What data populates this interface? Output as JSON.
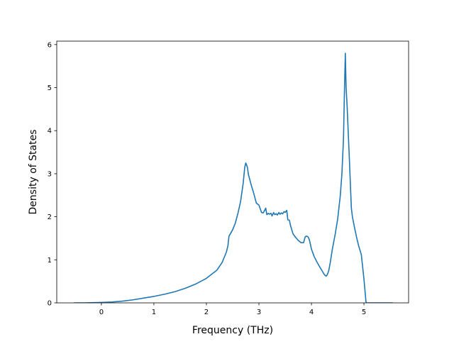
{
  "chart_data": {
    "type": "line",
    "title": "",
    "xlabel": "Frequency (THz)",
    "ylabel": "Density of States",
    "xlim": [
      -0.85,
      5.85
    ],
    "ylim": [
      0,
      6.08
    ],
    "xticks": [
      0,
      1,
      2,
      3,
      4,
      5
    ],
    "yticks": [
      0,
      1,
      2,
      3,
      4,
      5,
      6
    ],
    "grid": false,
    "legend": "none",
    "series": [
      {
        "color": "#1f77b4",
        "x": [
          -0.52,
          -0.3,
          0.0,
          0.2,
          0.4,
          0.6,
          0.8,
          1.0,
          1.2,
          1.4,
          1.6,
          1.8,
          2.0,
          2.2,
          2.3,
          2.38,
          2.41,
          2.43,
          2.5,
          2.55,
          2.6,
          2.65,
          2.7,
          2.73,
          2.75,
          2.78,
          2.8,
          2.85,
          2.9,
          2.95,
          3.0,
          3.05,
          3.08,
          3.1,
          3.13,
          3.15,
          3.18,
          3.2,
          3.23,
          3.25,
          3.28,
          3.3,
          3.33,
          3.35,
          3.38,
          3.4,
          3.43,
          3.45,
          3.48,
          3.5,
          3.53,
          3.55,
          3.58,
          3.6,
          3.65,
          3.7,
          3.75,
          3.8,
          3.85,
          3.88,
          3.9,
          3.93,
          3.96,
          4.0,
          4.05,
          4.1,
          4.15,
          4.2,
          4.25,
          4.28,
          4.3,
          4.33,
          4.36,
          4.4,
          4.45,
          4.5,
          4.55,
          4.58,
          4.61,
          4.63,
          4.645,
          4.66,
          4.68,
          4.72,
          4.76,
          4.78,
          4.82,
          4.86,
          4.9,
          4.95,
          5.0,
          5.04,
          5.06,
          5.08,
          5.55
        ],
        "y": [
          0.0,
          0.0,
          0.01,
          0.02,
          0.04,
          0.07,
          0.11,
          0.15,
          0.2,
          0.26,
          0.34,
          0.44,
          0.57,
          0.76,
          0.94,
          1.18,
          1.33,
          1.55,
          1.7,
          1.85,
          2.08,
          2.35,
          2.78,
          3.15,
          3.25,
          3.15,
          2.98,
          2.75,
          2.55,
          2.32,
          2.27,
          2.1,
          2.09,
          2.13,
          2.2,
          2.05,
          2.08,
          2.06,
          2.08,
          2.02,
          2.1,
          2.05,
          2.07,
          2.04,
          2.1,
          2.06,
          2.09,
          2.07,
          2.12,
          2.1,
          2.15,
          1.93,
          1.92,
          1.8,
          1.6,
          1.52,
          1.45,
          1.4,
          1.4,
          1.53,
          1.55,
          1.54,
          1.47,
          1.25,
          1.08,
          0.96,
          0.85,
          0.75,
          0.65,
          0.62,
          0.65,
          0.75,
          0.95,
          1.26,
          1.58,
          1.95,
          2.5,
          3.0,
          3.8,
          5.0,
          5.8,
          5.0,
          4.55,
          3.4,
          2.2,
          2.0,
          1.75,
          1.52,
          1.32,
          1.12,
          0.55,
          0.0,
          0.0,
          0.0,
          0.0
        ]
      }
    ]
  }
}
